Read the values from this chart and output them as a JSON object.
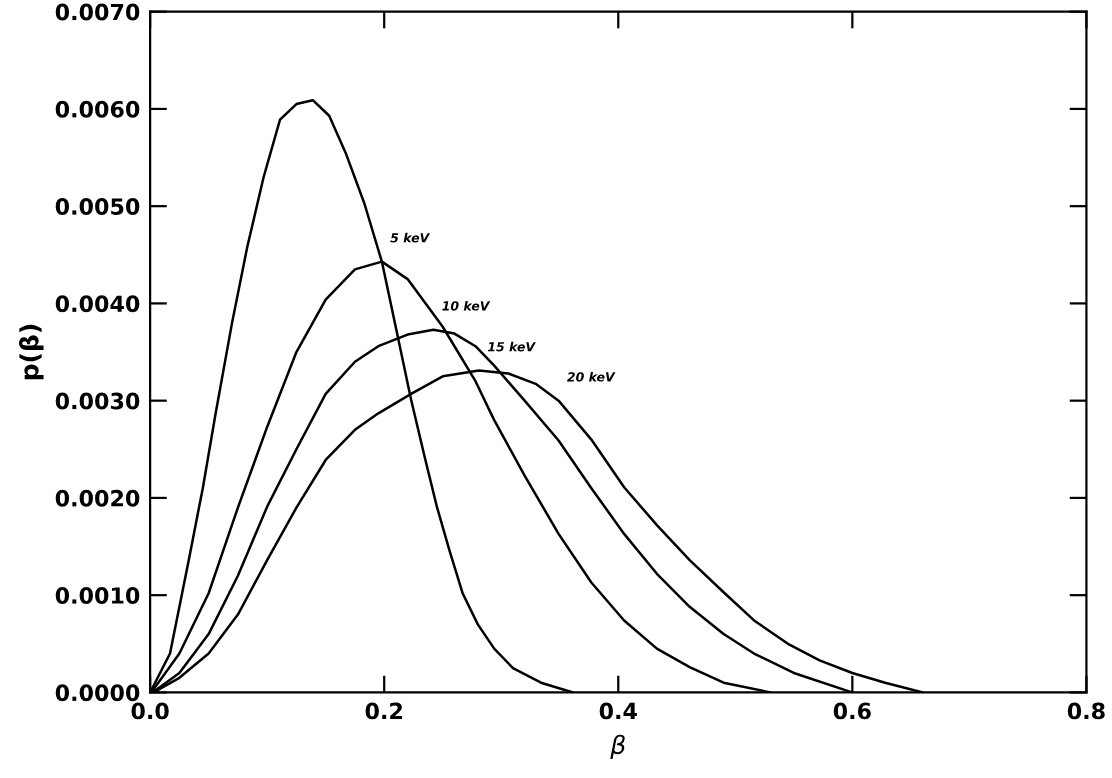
{
  "chart_data": {
    "type": "line",
    "xlabel": "β",
    "ylabel": "p(β)",
    "series": [
      {
        "color": "#000000",
        "x": [
          0,
          0.017,
          0.033,
          0.045,
          0.056,
          0.07,
          0.083,
          0.097,
          0.111,
          0.125,
          0.139,
          0.153,
          0.167,
          0.183,
          0.198,
          0.21,
          0.223,
          0.235,
          0.245,
          0.256,
          0.267,
          0.28,
          0.294,
          0.31,
          0.334,
          0.361
        ],
        "values": [
          0,
          0.0004,
          0.00136,
          0.0021,
          0.00287,
          0.0038,
          0.00458,
          0.0053,
          0.00589,
          0.00605,
          0.00609,
          0.00593,
          0.00555,
          0.00503,
          0.00443,
          0.00375,
          0.00301,
          0.0024,
          0.00191,
          0.00145,
          0.00102,
          0.0007,
          0.00045,
          0.00025,
          0.0001,
          0
        ]
      },
      {
        "color": "#000000",
        "x": [
          0.001,
          0.025,
          0.05,
          0.075,
          0.1,
          0.125,
          0.15,
          0.175,
          0.198,
          0.22,
          0.25,
          0.278,
          0.294,
          0.32,
          0.349,
          0.377,
          0.405,
          0.433,
          0.461,
          0.49,
          0.53
        ],
        "values": [
          0,
          0.0004,
          0.00102,
          0.0019,
          0.00273,
          0.0035,
          0.00404,
          0.00435,
          0.00443,
          0.00425,
          0.00376,
          0.0032,
          0.0028,
          0.00223,
          0.00163,
          0.00113,
          0.00074,
          0.00045,
          0.00026,
          0.0001,
          0
        ]
      },
      {
        "color": "#000000",
        "x": [
          0.002,
          0.025,
          0.05,
          0.075,
          0.1,
          0.125,
          0.15,
          0.175,
          0.195,
          0.22,
          0.242,
          0.26,
          0.278,
          0.294,
          0.32,
          0.349,
          0.377,
          0.405,
          0.433,
          0.461,
          0.49,
          0.516,
          0.55,
          0.6
        ],
        "values": [
          0,
          0.0002,
          0.0006,
          0.0012,
          0.00191,
          0.0025,
          0.00307,
          0.0034,
          0.00356,
          0.00368,
          0.00373,
          0.00369,
          0.00356,
          0.00336,
          0.003,
          0.00259,
          0.0021,
          0.00163,
          0.00122,
          0.00088,
          0.0006,
          0.0004,
          0.0002,
          0
        ]
      },
      {
        "color": "#000000",
        "x": [
          0.003,
          0.025,
          0.05,
          0.075,
          0.1,
          0.125,
          0.15,
          0.175,
          0.195,
          0.223,
          0.25,
          0.281,
          0.306,
          0.33,
          0.349,
          0.377,
          0.405,
          0.433,
          0.461,
          0.49,
          0.516,
          0.545,
          0.572,
          0.6,
          0.628,
          0.66
        ],
        "values": [
          0,
          0.00015,
          0.0004,
          0.0008,
          0.00136,
          0.0019,
          0.00239,
          0.0027,
          0.00287,
          0.00307,
          0.00325,
          0.00331,
          0.00328,
          0.00317,
          0.003,
          0.0026,
          0.00211,
          0.00172,
          0.00136,
          0.00103,
          0.00074,
          0.0005,
          0.00033,
          0.0002,
          0.0001,
          0
        ]
      }
    ],
    "annotations": [
      {
        "text": "5 keV",
        "x": 0.198,
        "y": 0.00443
      },
      {
        "text": "10 keV",
        "x": 0.242,
        "y": 0.00373
      },
      {
        "text": "15 keV",
        "x": 0.281,
        "y": 0.00331
      },
      {
        "text": "20 keV",
        "x": 0.349,
        "y": 0.003
      }
    ],
    "xlim": [
      0,
      0.8
    ],
    "xticks": [
      {
        "value": 0,
        "label": "0.0"
      },
      {
        "value": 0.2,
        "label": "0.2"
      },
      {
        "value": 0.4,
        "label": "0.4"
      },
      {
        "value": 0.6,
        "label": "0.6"
      },
      {
        "value": 0.8,
        "label": "0.8"
      }
    ],
    "ylim": [
      0,
      0.007
    ],
    "yticks": [
      {
        "value": 0,
        "label": "0.0000"
      },
      {
        "value": 0.001,
        "label": "0.0010"
      },
      {
        "value": 0.002,
        "label": "0.0020"
      },
      {
        "value": 0.003,
        "label": "0.0030"
      },
      {
        "value": 0.004,
        "label": "0.0040"
      },
      {
        "value": 0.005,
        "label": "0.0050"
      },
      {
        "value": 0.006,
        "label": "0.0060"
      },
      {
        "value": 0.007,
        "label": "0.0070"
      }
    ],
    "grid": false,
    "legend": false,
    "marker": "none",
    "line_style": "solid"
  }
}
